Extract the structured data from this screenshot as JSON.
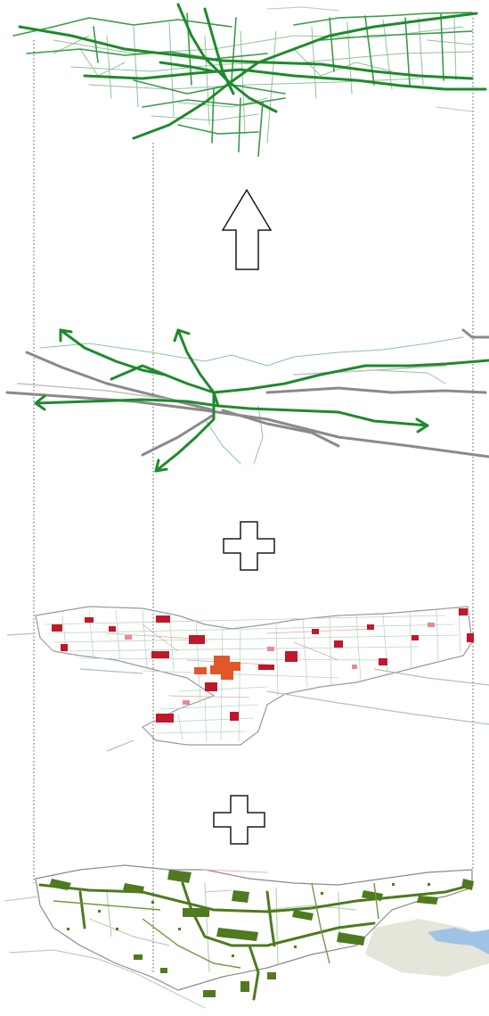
{
  "diagram": {
    "layers": [
      {
        "name": "combined-green-network",
        "palette": "green"
      },
      {
        "name": "green-corridors-and-rail",
        "palette": "green-grey"
      },
      {
        "name": "street-grid-and-hotspots",
        "palette": "red-orange"
      },
      {
        "name": "green-space-patches",
        "palette": "olive-blue"
      }
    ],
    "operators": [
      "up-arrow",
      "plus",
      "plus"
    ]
  },
  "colors": {
    "dark_green": "#1e8a2c",
    "mid_green": "#3a9a48",
    "pale_green": "#8fc497",
    "grey": "#8a8a8a",
    "light_grey": "#c2c2c2",
    "red": "#c0172a",
    "orange": "#e2572a",
    "olive": "#4f7a1f",
    "water_blue": "#9fc3e4",
    "land_beige": "#e6e5da",
    "guide": "#555555",
    "outline": "#1a1a1a"
  }
}
